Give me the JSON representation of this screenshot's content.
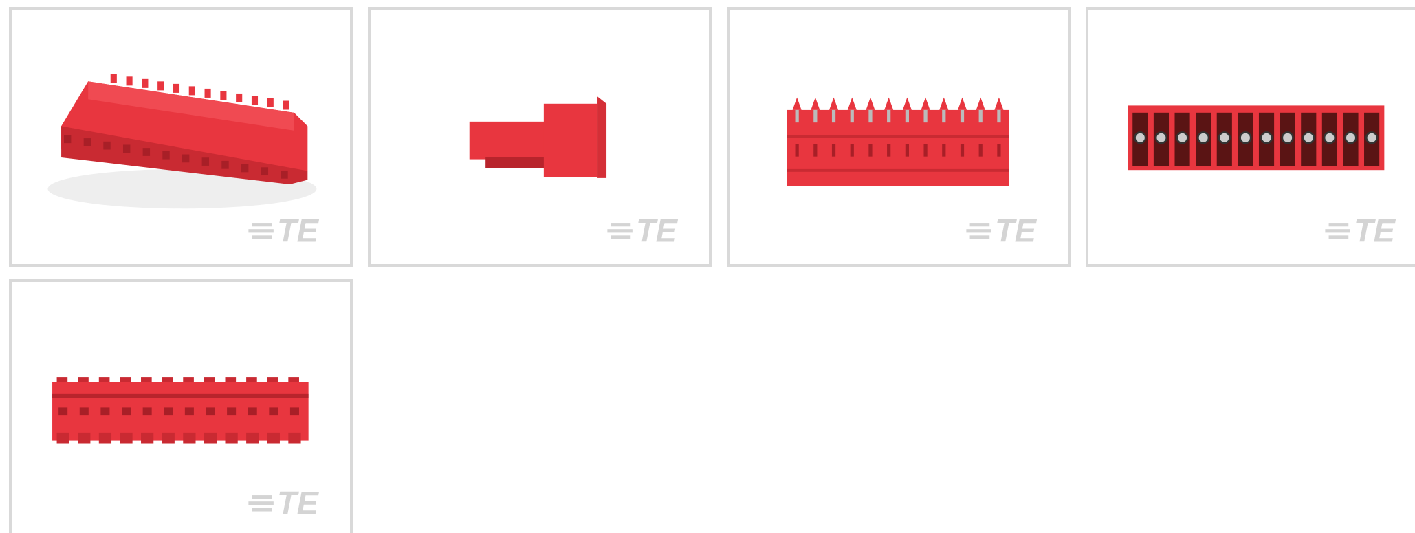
{
  "gallery": {
    "tiles": [
      {
        "watermark": "TE"
      },
      {
        "watermark": "TE"
      },
      {
        "watermark": "TE"
      },
      {
        "watermark": "TE"
      },
      {
        "watermark": "TE"
      }
    ]
  }
}
